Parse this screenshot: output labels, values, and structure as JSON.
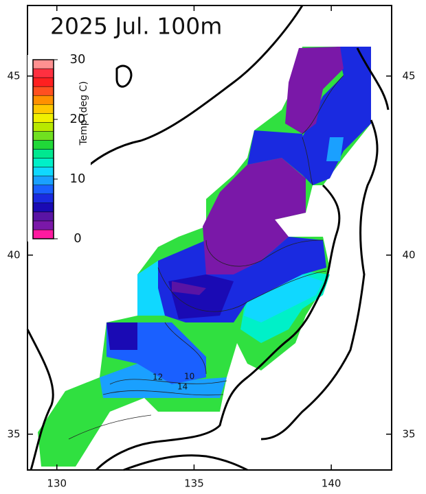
{
  "title": "2025 Jul. 100m",
  "colorbar": {
    "label": "Temp (deg C)",
    "ticks": [
      0,
      10,
      20,
      30
    ],
    "range": [
      0,
      30
    ],
    "colors": [
      "#ff1aa0",
      "#7a18a8",
      "#5a14a4",
      "#1a0ab4",
      "#1a2ae0",
      "#1a60ff",
      "#1aa0ff",
      "#10d8ff",
      "#00f0c8",
      "#00e890",
      "#20d838",
      "#70e020",
      "#b8e800",
      "#f0f000",
      "#ffc800",
      "#ff9000",
      "#ff5020",
      "#ff2020",
      "#ff3040",
      "#ff9090"
    ]
  },
  "axes": {
    "lon_ticks": [
      130,
      135,
      140
    ],
    "lat_ticks": [
      35,
      40,
      45
    ],
    "lon_range": [
      128.93,
      142.2
    ],
    "lat_range": [
      34.0,
      46.97
    ]
  },
  "contour_labels": [
    "12",
    "14",
    "10"
  ]
}
